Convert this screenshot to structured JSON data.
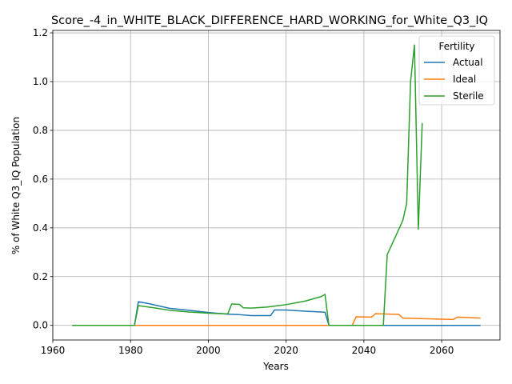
{
  "chart_data": {
    "type": "line",
    "title": "Score_-4_in_WHITE_BLACK_DIFFERENCE_HARD_WORKING_for_White_Q3_IQ",
    "xlabel": "Years",
    "ylabel": "% of White Q3_IQ Population",
    "xlim": [
      1960,
      2075
    ],
    "ylim": [
      -0.06,
      1.21
    ],
    "xticks": [
      1960,
      1980,
      2000,
      2020,
      2040,
      2060
    ],
    "yticks": [
      0.0,
      0.2,
      0.4,
      0.6,
      0.8,
      1.0,
      1.2
    ],
    "grid": true,
    "legend": {
      "title": "Fertility",
      "placement": "top-right"
    },
    "series": [
      {
        "name": "Actual",
        "color": "#1f77b4",
        "points": [
          [
            1965,
            0
          ],
          [
            1981,
            0
          ],
          [
            1982,
            0.097
          ],
          [
            1985,
            0.088
          ],
          [
            1990,
            0.07
          ],
          [
            1995,
            0.062
          ],
          [
            2000,
            0.053
          ],
          [
            2005,
            0.046
          ],
          [
            2008,
            0.044
          ],
          [
            2011,
            0.04
          ],
          [
            2016,
            0.04
          ],
          [
            2017,
            0.063
          ],
          [
            2020,
            0.063
          ],
          [
            2025,
            0.058
          ],
          [
            2030,
            0.054
          ],
          [
            2031,
            0
          ],
          [
            2070,
            0
          ]
        ]
      },
      {
        "name": "Ideal",
        "color": "#ff7f0e",
        "points": [
          [
            1965,
            0
          ],
          [
            2037,
            0
          ],
          [
            2038,
            0.035
          ],
          [
            2042,
            0.034
          ],
          [
            2043,
            0.048
          ],
          [
            2049,
            0.045
          ],
          [
            2050,
            0.03
          ],
          [
            2063,
            0.024
          ],
          [
            2064,
            0.034
          ],
          [
            2070,
            0.03
          ]
        ]
      },
      {
        "name": "Sterile",
        "color": "#2ca02c",
        "points": [
          [
            1965,
            0
          ],
          [
            1981,
            0
          ],
          [
            1982,
            0.081
          ],
          [
            1986,
            0.072
          ],
          [
            1990,
            0.062
          ],
          [
            1995,
            0.055
          ],
          [
            2000,
            0.05
          ],
          [
            2005,
            0.047
          ],
          [
            2006,
            0.088
          ],
          [
            2008,
            0.086
          ],
          [
            2009,
            0.072
          ],
          [
            2011,
            0.071
          ],
          [
            2015,
            0.075
          ],
          [
            2020,
            0.085
          ],
          [
            2025,
            0.1
          ],
          [
            2029,
            0.118
          ],
          [
            2030,
            0.127
          ],
          [
            2031,
            0
          ],
          [
            2045,
            0
          ],
          [
            2046,
            0.29
          ],
          [
            2050,
            0.43
          ],
          [
            2051,
            0.5
          ],
          [
            2052,
            1.0
          ],
          [
            2053,
            1.15
          ],
          [
            2054,
            0.395
          ],
          [
            2055,
            0.83
          ]
        ]
      }
    ]
  }
}
